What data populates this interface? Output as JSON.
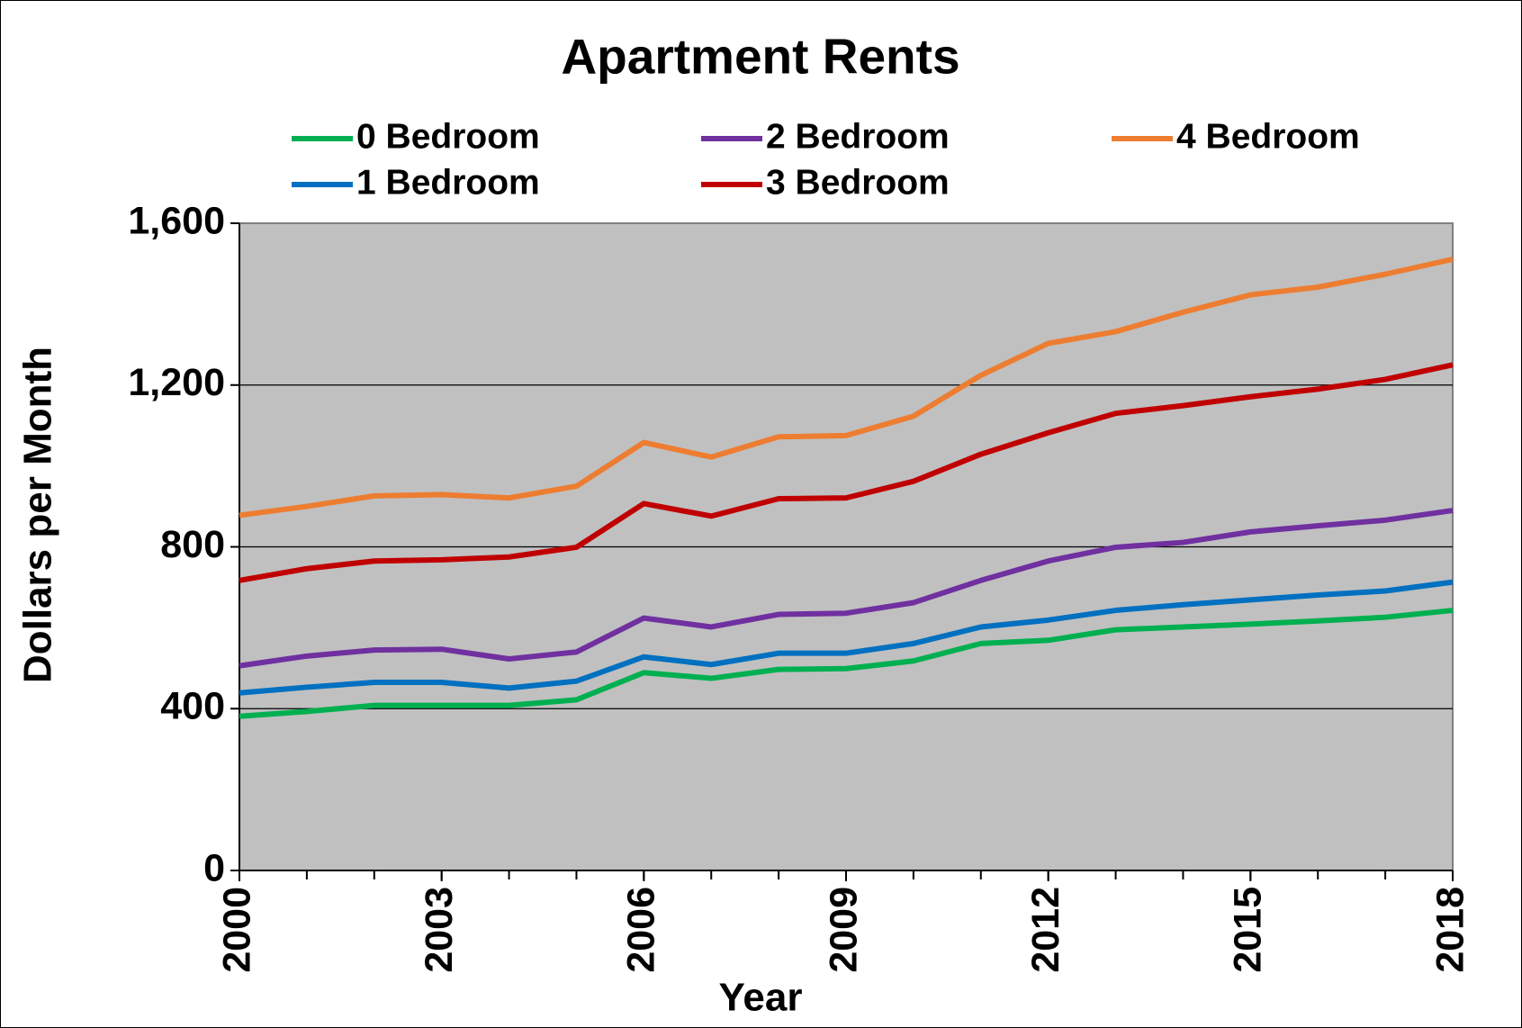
{
  "chart_data": {
    "type": "line",
    "title": "Apartment Rents",
    "x_label": "Year",
    "y_label": "Dollars per Month",
    "x": [
      2000,
      2001,
      2002,
      2003,
      2004,
      2005,
      2006,
      2007,
      2008,
      2009,
      2010,
      2011,
      2012,
      2013,
      2014,
      2015,
      2016,
      2017,
      2018
    ],
    "xlim": [
      2000,
      2018
    ],
    "xticks": [
      2000,
      2003,
      2006,
      2009,
      2012,
      2015,
      2018
    ],
    "ylim": [
      0,
      1600
    ],
    "yticks": [
      0,
      400,
      800,
      {
        "value": 1200,
        "label": "1,200"
      },
      {
        "value": 1600,
        "label": "1,600"
      }
    ],
    "grid": true,
    "legend": "top",
    "series": [
      {
        "name": "0 Bedroom",
        "color": "#00b050",
        "values": [
          381,
          393,
          408,
          408,
          408,
          422,
          489,
          475,
          497,
          499,
          518,
          561,
          569,
          595,
          602,
          609,
          617,
          626,
          643
        ]
      },
      {
        "name": "1 Bedroom",
        "color": "#0070c0",
        "values": [
          439,
          453,
          465,
          465,
          451,
          468,
          528,
          509,
          537,
          537,
          561,
          602,
          619,
          643,
          657,
          669,
          681,
          691,
          713
        ]
      },
      {
        "name": "2 Bedroom",
        "color": "#7030a0",
        "values": [
          506,
          530,
          545,
          547,
          523,
          540,
          624,
          602,
          633,
          636,
          662,
          717,
          765,
          799,
          811,
          837,
          852,
          866,
          890
        ]
      },
      {
        "name": "3 Bedroom",
        "color": "#c00000",
        "values": [
          717,
          746,
          765,
          768,
          775,
          799,
          907,
          876,
          919,
          921,
          962,
          1029,
          1082,
          1130,
          1149,
          1171,
          1190,
          1214,
          1250
        ]
      },
      {
        "name": "4 Bedroom",
        "color": "#ed7d31",
        "values": [
          878,
          900,
          926,
          929,
          921,
          950,
          1058,
          1022,
          1072,
          1075,
          1123,
          1224,
          1303,
          1332,
          1380,
          1423,
          1442,
          1474,
          1511
        ]
      }
    ]
  }
}
